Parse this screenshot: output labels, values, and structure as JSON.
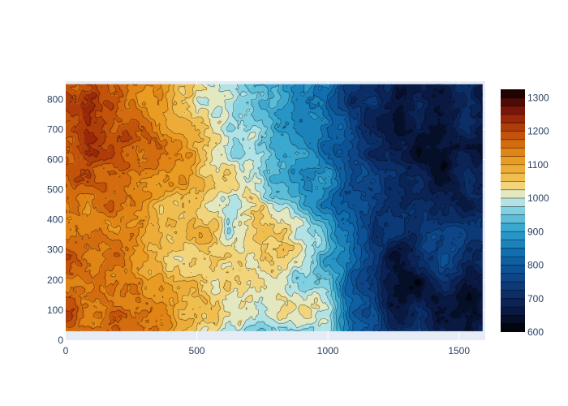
{
  "chart_data": {
    "type": "heatmap",
    "subtype": "contour",
    "title": "",
    "xlabel": "",
    "ylabel": "",
    "xlim": [
      0,
      1600
    ],
    "ylim": [
      0,
      860
    ],
    "data_extent": {
      "x": [
        0,
        1590
      ],
      "y": [
        30,
        850
      ]
    },
    "x_ticks": [
      0,
      500,
      1000,
      1500
    ],
    "y_ticks": [
      0,
      100,
      200,
      300,
      400,
      500,
      600,
      700,
      800
    ],
    "grid": true,
    "z_range": [
      600,
      1325
    ],
    "contour_step": 25,
    "colorbar": {
      "ticks": [
        600,
        700,
        800,
        900,
        1000,
        1100,
        1200,
        1300
      ],
      "placement": "right"
    },
    "colorscale": [
      [
        0.0,
        "#000000"
      ],
      [
        0.09,
        "#0a1a45"
      ],
      [
        0.2,
        "#0c3c7d"
      ],
      [
        0.32,
        "#0f6aad"
      ],
      [
        0.42,
        "#2fa2cc"
      ],
      [
        0.5,
        "#7fd0e0"
      ],
      [
        0.55,
        "#c8ece8"
      ],
      [
        0.58,
        "#f3e6a8"
      ],
      [
        0.62,
        "#f2c75a"
      ],
      [
        0.72,
        "#e9941a"
      ],
      [
        0.8,
        "#c9590a"
      ],
      [
        0.9,
        "#8c1a0a"
      ],
      [
        1.0,
        "#0a0000"
      ]
    ],
    "elevation_features": [
      {
        "x": 110,
        "y": 690,
        "z": 1290,
        "r": 170
      },
      {
        "x": 230,
        "y": 620,
        "z": 1180,
        "r": 140
      },
      {
        "x": 320,
        "y": 770,
        "z": 1120,
        "r": 160
      },
      {
        "x": 60,
        "y": 560,
        "z": 1100,
        "r": 160
      },
      {
        "x": 200,
        "y": 390,
        "z": 1170,
        "r": 130
      },
      {
        "x": 300,
        "y": 110,
        "z": 1150,
        "r": 140
      },
      {
        "x": 470,
        "y": 520,
        "z": 1120,
        "r": 110
      },
      {
        "x": 420,
        "y": 250,
        "z": 1060,
        "r": 150
      },
      {
        "x": 540,
        "y": 730,
        "z": 1010,
        "r": 120
      },
      {
        "x": 700,
        "y": 300,
        "z": 1070,
        "r": 130
      },
      {
        "x": 850,
        "y": 320,
        "z": 1080,
        "r": 110
      },
      {
        "x": 610,
        "y": 150,
        "z": 1000,
        "r": 110
      },
      {
        "x": 920,
        "y": 90,
        "z": 1060,
        "r": 110
      },
      {
        "x": 1310,
        "y": 200,
        "z": 620,
        "r": 140
      },
      {
        "x": 1380,
        "y": 560,
        "z": 610,
        "r": 160
      },
      {
        "x": 1250,
        "y": 780,
        "z": 640,
        "r": 150
      },
      {
        "x": 1530,
        "y": 380,
        "z": 760,
        "r": 140
      },
      {
        "x": 1430,
        "y": 290,
        "z": 830,
        "r": 80
      },
      {
        "x": 1550,
        "y": 800,
        "z": 700,
        "r": 150
      }
    ],
    "background_gradient": {
      "x_center": 950,
      "slope_per_unit": -0.34,
      "base": 870
    }
  }
}
